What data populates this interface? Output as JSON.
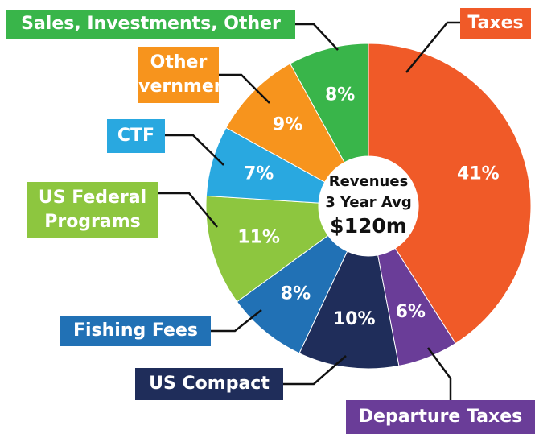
{
  "chart_data": {
    "type": "donut",
    "categories": [
      "Taxes",
      "Departure Taxes",
      "US Compact",
      "Fishing Fees",
      "US Federal Programs",
      "CTF",
      "Other Governments",
      "Sales, Investments, Other"
    ],
    "values": [
      41,
      6,
      10,
      8,
      11,
      7,
      9,
      8
    ],
    "value_labels": [
      "41%",
      "6%",
      "10%",
      "8%",
      "11%",
      "7%",
      "9%",
      "8%"
    ],
    "colors": [
      "#f05a28",
      "#6a3d98",
      "#1f2d5a",
      "#2171b5",
      "#8dc63f",
      "#29a8e0",
      "#f7941d",
      "#39b54a"
    ],
    "center_text": [
      "Revenues",
      "3 Year Avg",
      "$120m"
    ]
  }
}
